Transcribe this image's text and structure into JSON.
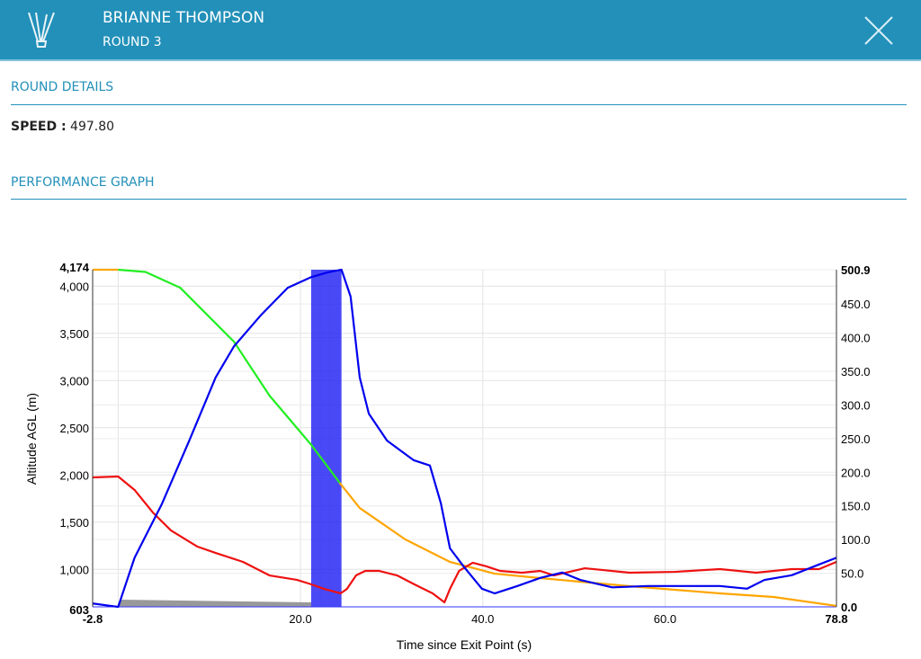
{
  "header": {
    "name": "BRIANNE THOMPSON",
    "round": "ROUND 3"
  },
  "details": {
    "title": "ROUND DETAILS",
    "speed_label": "SPEED :",
    "speed_value": "497.80"
  },
  "graph": {
    "title": "PERFORMANCE GRAPH"
  },
  "colors": {
    "header": "#2290b9",
    "speed": "#0000ee",
    "altitude_freefall": "#22ee22",
    "altitude": "#ffa500",
    "red_series": "#ee1111",
    "window": "#3333ee"
  },
  "chart_data": {
    "type": "line",
    "xlabel": "Time since Exit Point (s)",
    "ylabel": "Altitude AGL (m)",
    "xlim": [
      -2.8,
      78.8
    ],
    "ylim_left": [
      603,
      4174
    ],
    "ylim_right": [
      0,
      500.9
    ],
    "x_ticks": [
      "-2.8",
      "20.0",
      "40.0",
      "60.0",
      "78.8"
    ],
    "x_tick_values": [
      -2.8,
      20,
      40,
      60,
      78.8
    ],
    "left_ticks": [
      "603",
      "1,000",
      "1,500",
      "2,000",
      "2,500",
      "3,000",
      "3,500",
      "4,000",
      "4,174"
    ],
    "left_tick_values": [
      603,
      1000,
      1500,
      2000,
      2500,
      3000,
      3500,
      4000,
      4174
    ],
    "right_ticks": [
      "0.0",
      "50.0",
      "100.0",
      "150.0",
      "200.0",
      "250.0",
      "300.0",
      "350.0",
      "400.0",
      "450.0",
      "500.9"
    ],
    "right_tick_values": [
      0,
      50,
      100,
      150,
      200,
      250,
      300,
      350,
      400,
      450,
      500.9
    ],
    "scoring_window": [
      21.2,
      24.5
    ],
    "series": [
      {
        "name": "speed",
        "axis": "right",
        "color": "#0000ee",
        "points": [
          [
            -2.8,
            5
          ],
          [
            0,
            0
          ],
          [
            1.8,
            73
          ],
          [
            4.8,
            153
          ],
          [
            7.8,
            247
          ],
          [
            10.7,
            341
          ],
          [
            12.7,
            387
          ],
          [
            15.7,
            434
          ],
          [
            18.6,
            474
          ],
          [
            21.2,
            490
          ],
          [
            23,
            497
          ],
          [
            24.5,
            501
          ],
          [
            25.5,
            461
          ],
          [
            26.5,
            341
          ],
          [
            27.5,
            287
          ],
          [
            29.5,
            247
          ],
          [
            32.4,
            218
          ],
          [
            34.2,
            210
          ],
          [
            35.4,
            154
          ],
          [
            36.4,
            87
          ],
          [
            37.9,
            60
          ],
          [
            39.9,
            27
          ],
          [
            41.3,
            20
          ],
          [
            43.8,
            31
          ],
          [
            46.3,
            43
          ],
          [
            48.7,
            51
          ],
          [
            50.7,
            40
          ],
          [
            54.2,
            29
          ],
          [
            58.1,
            31
          ],
          [
            62.1,
            31
          ],
          [
            66,
            31
          ],
          [
            69,
            27
          ],
          [
            70.9,
            40
          ],
          [
            73.9,
            47
          ],
          [
            76.9,
            63
          ],
          [
            78.8,
            73
          ]
        ]
      },
      {
        "name": "altitude-pre-exit",
        "axis": "left",
        "color": "#ffa500",
        "points": [
          [
            -2.8,
            4174
          ],
          [
            0,
            4174
          ]
        ]
      },
      {
        "name": "altitude-freefall",
        "axis": "left",
        "color": "#22ee22",
        "points": [
          [
            0,
            4174
          ],
          [
            3,
            4150
          ],
          [
            6.8,
            3984
          ],
          [
            12.7,
            3412
          ],
          [
            16.6,
            2841
          ],
          [
            21.2,
            2317
          ],
          [
            24.3,
            1917
          ]
        ]
      },
      {
        "name": "altitude-post",
        "axis": "left",
        "color": "#ffa500",
        "points": [
          [
            24.3,
            1917
          ],
          [
            26.5,
            1650
          ],
          [
            31.5,
            1317
          ],
          [
            36.4,
            1079
          ],
          [
            41.3,
            955
          ],
          [
            46.3,
            908
          ],
          [
            56.1,
            822
          ],
          [
            66,
            746
          ],
          [
            71.9,
            708
          ],
          [
            78.8,
            613
          ]
        ]
      },
      {
        "name": "red-series",
        "axis": "left",
        "color": "#ee1111",
        "points": [
          [
            -2.8,
            1974
          ],
          [
            0,
            1984
          ],
          [
            1.8,
            1841
          ],
          [
            3.8,
            1603
          ],
          [
            5.8,
            1412
          ],
          [
            8.7,
            1241
          ],
          [
            10.7,
            1174
          ],
          [
            13.7,
            1079
          ],
          [
            16.6,
            936
          ],
          [
            19.6,
            889
          ],
          [
            21.2,
            841
          ],
          [
            22.6,
            793
          ],
          [
            24.4,
            746
          ],
          [
            25.1,
            793
          ],
          [
            26.1,
            936
          ],
          [
            27.1,
            984
          ],
          [
            28.6,
            984
          ],
          [
            30.6,
            936
          ],
          [
            32.5,
            841
          ],
          [
            34.5,
            746
          ],
          [
            35.8,
            651
          ],
          [
            36.4,
            793
          ],
          [
            37.4,
            984
          ],
          [
            38.9,
            1070
          ],
          [
            40.4,
            1032
          ],
          [
            41.9,
            984
          ],
          [
            44.3,
            965
          ],
          [
            46.3,
            984
          ],
          [
            47.8,
            936
          ],
          [
            51.2,
            1012
          ],
          [
            56.1,
            965
          ],
          [
            61.1,
            974
          ],
          [
            66,
            1003
          ],
          [
            70,
            965
          ],
          [
            73.9,
            1003
          ],
          [
            76.9,
            1003
          ],
          [
            78.8,
            1079
          ]
        ]
      }
    ]
  }
}
